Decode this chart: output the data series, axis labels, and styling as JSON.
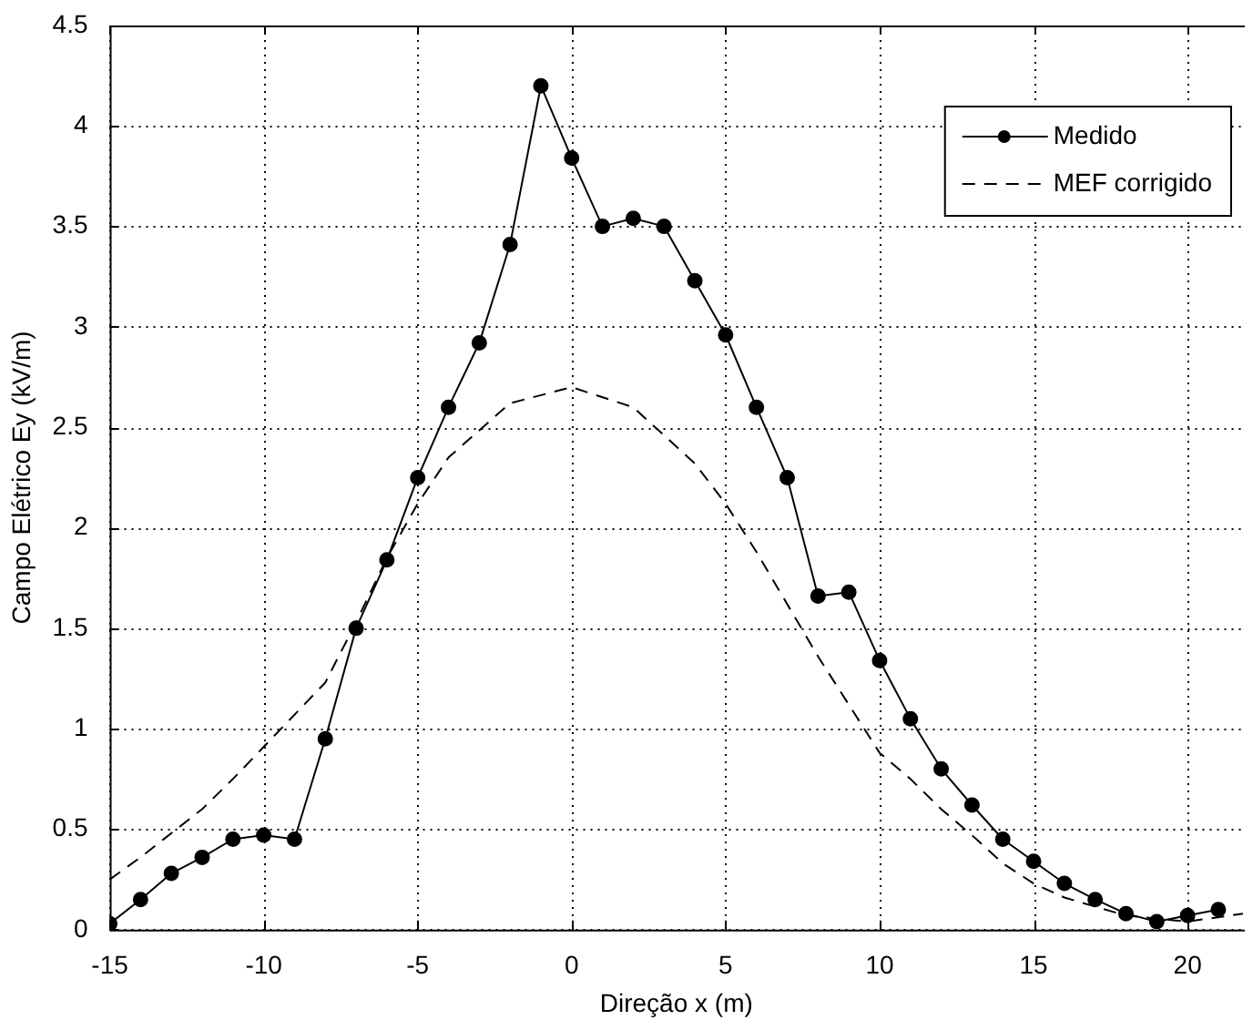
{
  "chart_data": {
    "type": "line",
    "xlabel": "Direção x (m)",
    "ylabel": "Campo Elétrico Ey (kV/m)",
    "xlim": [
      -15,
      21.8
    ],
    "xticks": [
      -15,
      -10,
      -5,
      0,
      5,
      10,
      15,
      20
    ],
    "ylim": [
      0,
      4.5
    ],
    "yticks": [
      0,
      0.5,
      1,
      1.5,
      2,
      2.5,
      3,
      3.5,
      4,
      4.5
    ],
    "grid": true,
    "legend": "top right",
    "series": [
      {
        "name": "Medido",
        "color": "#000000",
        "marker": "circle",
        "line_style": "solid",
        "x": [
          -15,
          -14,
          -13,
          -12,
          -11,
          -10,
          -9,
          -8,
          -7,
          -6,
          -5,
          -4,
          -3,
          -2,
          -1,
          0,
          1,
          2,
          3,
          4,
          5,
          6,
          7,
          8,
          9,
          10,
          11,
          12,
          13,
          14,
          15,
          16,
          17,
          18,
          19,
          20,
          21
        ],
        "values": [
          0.03,
          0.15,
          0.28,
          0.36,
          0.45,
          0.47,
          0.45,
          0.95,
          1.5,
          1.84,
          2.25,
          2.6,
          2.92,
          3.41,
          4.2,
          3.84,
          3.5,
          3.54,
          3.5,
          3.23,
          2.96,
          2.6,
          2.25,
          1.66,
          1.68,
          1.34,
          1.05,
          0.8,
          0.62,
          0.45,
          0.34,
          0.23,
          0.15,
          0.08,
          0.04,
          0.07,
          0.1
        ]
      },
      {
        "name": "MEF corrigido",
        "color": "#000000",
        "marker": "none",
        "line_style": "dashed",
        "x": [
          -15,
          -14,
          -12,
          -11,
          -10,
          -8,
          -7,
          -6,
          -5,
          -4,
          -2,
          0,
          2,
          4,
          5,
          6,
          8,
          10,
          11,
          12,
          13,
          14,
          15,
          16,
          18,
          20,
          21.8
        ],
        "values": [
          0.25,
          0.36,
          0.6,
          0.75,
          0.91,
          1.23,
          1.53,
          1.85,
          2.12,
          2.35,
          2.62,
          2.7,
          2.6,
          2.32,
          2.12,
          1.88,
          1.36,
          0.88,
          0.75,
          0.6,
          0.47,
          0.33,
          0.23,
          0.16,
          0.07,
          0.04,
          0.08
        ]
      }
    ]
  }
}
